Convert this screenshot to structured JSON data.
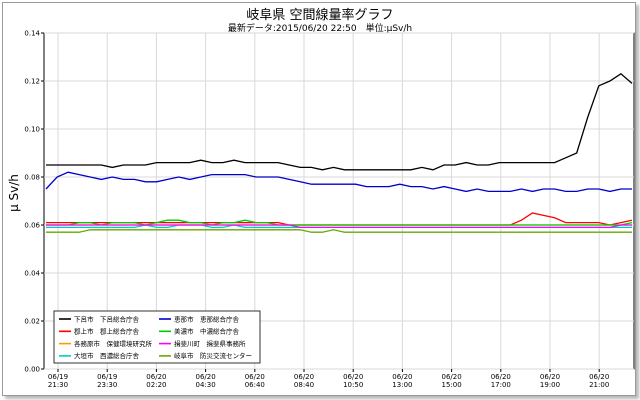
{
  "chart_data": {
    "type": "line",
    "title": "岐阜県 空間線量率グラフ",
    "subtitle": "最新データ:2015/06/20 22:50　単位:μSv/h",
    "ylabel": "μ Sv/h",
    "ylim": [
      0,
      0.14
    ],
    "yticks": [
      "0.00",
      "0.02",
      "0.04",
      "0.06",
      "0.08",
      "0.10",
      "0.12",
      "0.14"
    ],
    "xticks": [
      [
        "06/19",
        "21:30"
      ],
      [
        "06/19",
        "23:30"
      ],
      [
        "06/20",
        "02:20"
      ],
      [
        "06/20",
        "04:30"
      ],
      [
        "06/20",
        "06:40"
      ],
      [
        "06/20",
        "08:40"
      ],
      [
        "06/20",
        "10:50"
      ],
      [
        "06/20",
        "13:00"
      ],
      [
        "06/20",
        "15:00"
      ],
      [
        "06/20",
        "17:00"
      ],
      [
        "06/20",
        "19:00"
      ],
      [
        "06/20",
        "21:00"
      ]
    ],
    "grid": true,
    "legend_position": "bottom-left",
    "series": [
      {
        "name": "下呂市　下呂総合庁舎",
        "color": "#000000",
        "values": [
          0.085,
          0.085,
          0.085,
          0.085,
          0.085,
          0.085,
          0.084,
          0.085,
          0.085,
          0.085,
          0.086,
          0.086,
          0.086,
          0.086,
          0.087,
          0.086,
          0.086,
          0.087,
          0.086,
          0.086,
          0.086,
          0.086,
          0.085,
          0.084,
          0.084,
          0.083,
          0.084,
          0.083,
          0.083,
          0.083,
          0.083,
          0.083,
          0.083,
          0.083,
          0.084,
          0.083,
          0.085,
          0.085,
          0.086,
          0.085,
          0.085,
          0.086,
          0.086,
          0.086,
          0.086,
          0.086,
          0.086,
          0.088,
          0.09,
          0.105,
          0.118,
          0.12,
          0.123,
          0.119
        ]
      },
      {
        "name": "郡上市　郡上総合庁舎",
        "color": "#ff0000",
        "values": [
          0.061,
          0.061,
          0.061,
          0.061,
          0.061,
          0.061,
          0.061,
          0.061,
          0.061,
          0.061,
          0.061,
          0.061,
          0.061,
          0.061,
          0.061,
          0.061,
          0.061,
          0.061,
          0.061,
          0.061,
          0.061,
          0.061,
          0.06,
          0.06,
          0.06,
          0.06,
          0.06,
          0.06,
          0.06,
          0.06,
          0.06,
          0.06,
          0.06,
          0.06,
          0.06,
          0.06,
          0.06,
          0.06,
          0.06,
          0.06,
          0.06,
          0.06,
          0.06,
          0.062,
          0.065,
          0.064,
          0.063,
          0.061,
          0.061,
          0.061,
          0.061,
          0.06,
          0.061,
          0.062
        ]
      },
      {
        "name": "各務原市　保健環境研究所",
        "color": "#ff9900",
        "values": [
          0.06,
          0.06,
          0.06,
          0.06,
          0.06,
          0.06,
          0.06,
          0.06,
          0.06,
          0.06,
          0.06,
          0.06,
          0.06,
          0.06,
          0.06,
          0.06,
          0.06,
          0.06,
          0.06,
          0.06,
          0.06,
          0.06,
          0.06,
          0.06,
          0.06,
          0.06,
          0.06,
          0.06,
          0.06,
          0.06,
          0.06,
          0.06,
          0.06,
          0.06,
          0.06,
          0.06,
          0.06,
          0.06,
          0.06,
          0.06,
          0.06,
          0.06,
          0.06,
          0.06,
          0.06,
          0.06,
          0.06,
          0.06,
          0.06,
          0.06,
          0.06,
          0.06,
          0.06,
          0.06
        ]
      },
      {
        "name": "大垣市　西濃総合庁舎",
        "color": "#00cccc",
        "values": [
          0.059,
          0.059,
          0.059,
          0.059,
          0.059,
          0.059,
          0.059,
          0.059,
          0.059,
          0.06,
          0.059,
          0.059,
          0.06,
          0.06,
          0.06,
          0.059,
          0.059,
          0.06,
          0.059,
          0.059,
          0.059,
          0.059,
          0.059,
          0.059,
          0.059,
          0.059,
          0.059,
          0.059,
          0.059,
          0.059,
          0.059,
          0.059,
          0.059,
          0.059,
          0.059,
          0.059,
          0.059,
          0.059,
          0.059,
          0.059,
          0.059,
          0.059,
          0.059,
          0.059,
          0.059,
          0.059,
          0.059,
          0.059,
          0.059,
          0.059,
          0.059,
          0.059,
          0.059,
          0.059
        ]
      },
      {
        "name": "恵那市　恵那総合庁舎",
        "color": "#0000cc",
        "values": [
          0.075,
          0.08,
          0.082,
          0.081,
          0.08,
          0.079,
          0.08,
          0.079,
          0.079,
          0.078,
          0.078,
          0.079,
          0.08,
          0.079,
          0.08,
          0.081,
          0.081,
          0.081,
          0.081,
          0.08,
          0.08,
          0.08,
          0.079,
          0.078,
          0.077,
          0.077,
          0.077,
          0.077,
          0.077,
          0.076,
          0.076,
          0.076,
          0.077,
          0.076,
          0.076,
          0.075,
          0.076,
          0.075,
          0.074,
          0.075,
          0.074,
          0.074,
          0.074,
          0.075,
          0.074,
          0.075,
          0.075,
          0.074,
          0.074,
          0.075,
          0.075,
          0.074,
          0.075,
          0.075
        ]
      },
      {
        "name": "美濃市　中濃総合庁舎",
        "color": "#00cc00",
        "values": [
          0.06,
          0.06,
          0.06,
          0.061,
          0.061,
          0.06,
          0.061,
          0.061,
          0.061,
          0.06,
          0.061,
          0.062,
          0.062,
          0.061,
          0.061,
          0.06,
          0.061,
          0.061,
          0.062,
          0.061,
          0.061,
          0.06,
          0.06,
          0.06,
          0.06,
          0.06,
          0.06,
          0.06,
          0.06,
          0.06,
          0.06,
          0.06,
          0.06,
          0.06,
          0.06,
          0.06,
          0.06,
          0.06,
          0.06,
          0.06,
          0.06,
          0.06,
          0.06,
          0.06,
          0.06,
          0.06,
          0.06,
          0.06,
          0.06,
          0.06,
          0.06,
          0.06,
          0.06,
          0.061
        ]
      },
      {
        "name": "揖斐川町　揖斐県事務所",
        "color": "#ff00ff",
        "values": [
          0.06,
          0.06,
          0.06,
          0.06,
          0.06,
          0.06,
          0.06,
          0.06,
          0.06,
          0.06,
          0.06,
          0.06,
          0.06,
          0.06,
          0.06,
          0.06,
          0.06,
          0.06,
          0.06,
          0.06,
          0.06,
          0.06,
          0.06,
          0.059,
          0.059,
          0.059,
          0.059,
          0.059,
          0.059,
          0.059,
          0.059,
          0.059,
          0.059,
          0.059,
          0.059,
          0.059,
          0.059,
          0.059,
          0.059,
          0.059,
          0.059,
          0.059,
          0.059,
          0.059,
          0.059,
          0.059,
          0.059,
          0.059,
          0.059,
          0.059,
          0.059,
          0.059,
          0.06,
          0.06
        ]
      },
      {
        "name": "岐阜市　防災交流センター",
        "color": "#66aa00",
        "values": [
          0.057,
          0.057,
          0.057,
          0.057,
          0.058,
          0.058,
          0.058,
          0.058,
          0.058,
          0.058,
          0.058,
          0.058,
          0.058,
          0.058,
          0.058,
          0.058,
          0.058,
          0.058,
          0.058,
          0.058,
          0.058,
          0.058,
          0.058,
          0.058,
          0.057,
          0.057,
          0.058,
          0.057,
          0.057,
          0.057,
          0.057,
          0.057,
          0.057,
          0.057,
          0.057,
          0.057,
          0.057,
          0.057,
          0.057,
          0.057,
          0.057,
          0.057,
          0.057,
          0.057,
          0.057,
          0.057,
          0.057,
          0.057,
          0.057,
          0.057,
          0.057,
          0.057,
          0.057,
          0.057
        ]
      }
    ]
  }
}
